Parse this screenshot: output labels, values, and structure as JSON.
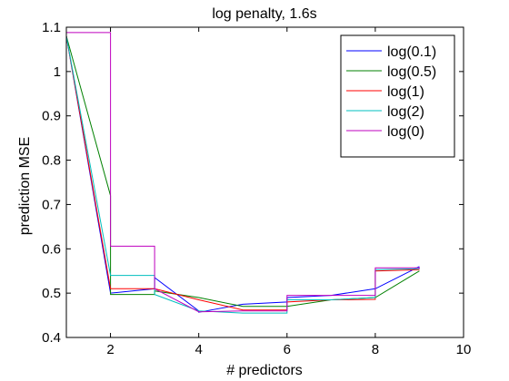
{
  "chart_data": {
    "type": "line",
    "title": "log penalty, 1.6s",
    "xlabel": "# predictors",
    "ylabel": "prediction MSE",
    "xlim": [
      1,
      10
    ],
    "ylim": [
      0.4,
      1.1
    ],
    "xticks": [
      2,
      4,
      6,
      8,
      10
    ],
    "yticks": [
      0.4,
      0.5,
      0.6,
      0.7,
      0.8,
      0.9,
      1,
      1.1
    ],
    "xtick_labels": [
      "2",
      "4",
      "6",
      "8",
      "10"
    ],
    "ytick_labels": [
      "0.4",
      "0.5",
      "0.6",
      "0.7",
      "0.8",
      "0.9",
      "1",
      "1.1"
    ],
    "grid": false,
    "legend_position": "top-right",
    "series": [
      {
        "name": "log(0.1)",
        "color": "#0000ff",
        "points": [
          [
            1,
            1.08
          ],
          [
            2,
            0.5
          ],
          [
            2,
            0.5
          ],
          [
            3,
            0.51
          ],
          [
            3,
            0.535
          ],
          [
            4,
            0.46
          ],
          [
            4,
            0.457
          ],
          [
            5,
            0.475
          ],
          [
            5,
            0.475
          ],
          [
            6,
            0.48
          ],
          [
            6,
            0.49
          ],
          [
            7,
            0.495
          ],
          [
            8,
            0.51
          ],
          [
            8,
            0.51
          ],
          [
            9,
            0.56
          ]
        ]
      },
      {
        "name": "log(0.5)",
        "color": "#008000",
        "points": [
          [
            1,
            1.08
          ],
          [
            2,
            0.72
          ],
          [
            2,
            0.497
          ],
          [
            3,
            0.497
          ],
          [
            3,
            0.505
          ],
          [
            4,
            0.49
          ],
          [
            5,
            0.47
          ],
          [
            5,
            0.47
          ],
          [
            6,
            0.47
          ],
          [
            6,
            0.47
          ],
          [
            7,
            0.485
          ],
          [
            8,
            0.49
          ],
          [
            8,
            0.49
          ],
          [
            9,
            0.55
          ]
        ]
      },
      {
        "name": "log(1)",
        "color": "#ff0000",
        "points": [
          [
            1,
            1.08
          ],
          [
            2,
            0.51
          ],
          [
            2,
            0.51
          ],
          [
            3,
            0.51
          ],
          [
            3,
            0.51
          ],
          [
            4,
            0.485
          ],
          [
            5,
            0.462
          ],
          [
            5,
            0.462
          ],
          [
            6,
            0.462
          ],
          [
            6,
            0.48
          ],
          [
            7,
            0.485
          ],
          [
            8,
            0.486
          ],
          [
            8,
            0.55
          ],
          [
            9,
            0.553
          ]
        ]
      },
      {
        "name": "log(2)",
        "color": "#00bfbf",
        "points": [
          [
            1,
            1.08
          ],
          [
            2,
            0.54
          ],
          [
            2,
            0.54
          ],
          [
            3,
            0.54
          ],
          [
            3,
            0.497
          ],
          [
            4,
            0.46
          ],
          [
            4,
            0.46
          ],
          [
            5,
            0.455
          ],
          [
            5,
            0.455
          ],
          [
            6,
            0.455
          ],
          [
            6,
            0.485
          ],
          [
            7,
            0.485
          ],
          [
            8,
            0.49
          ],
          [
            8,
            0.553
          ],
          [
            9,
            0.555
          ]
        ]
      },
      {
        "name": "log(0)",
        "color": "#bf00bf",
        "points": [
          [
            1,
            1.088
          ],
          [
            2,
            1.088
          ],
          [
            2,
            0.606
          ],
          [
            3,
            0.606
          ],
          [
            3,
            0.51
          ],
          [
            4,
            0.458
          ],
          [
            4,
            0.458
          ],
          [
            5,
            0.46
          ],
          [
            5,
            0.46
          ],
          [
            6,
            0.46
          ],
          [
            6,
            0.495
          ],
          [
            7,
            0.495
          ],
          [
            8,
            0.495
          ],
          [
            8,
            0.557
          ],
          [
            9,
            0.557
          ],
          [
            9,
            0.555
          ]
        ]
      }
    ]
  }
}
